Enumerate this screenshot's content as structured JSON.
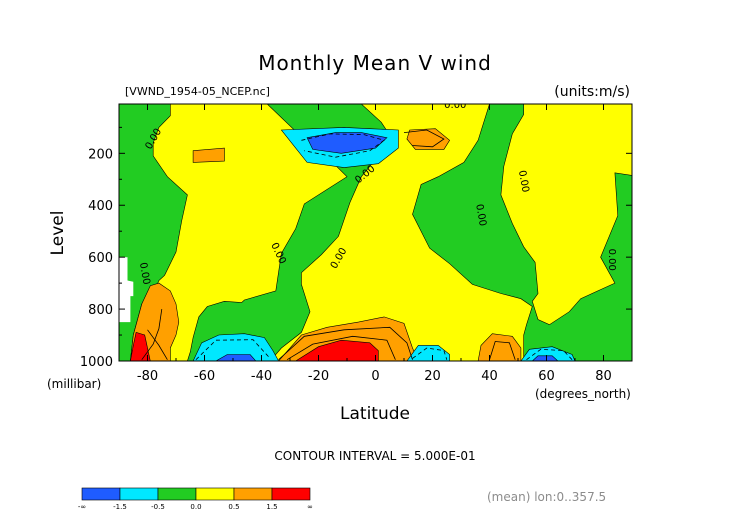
{
  "chart_data": {
    "type": "heatmap",
    "title": "Monthly Mean V wind",
    "subtitle_left": "[VWND_1954-05_NCEP.nc]",
    "subtitle_right": "(units:m/s)",
    "xlabel": "Latitude",
    "x_units": "(degrees_north)",
    "ylabel": "Level",
    "y_units": "(millibar)",
    "x_ticks": [
      -80,
      -60,
      -40,
      -20,
      0,
      20,
      40,
      60,
      80
    ],
    "y_ticks": [
      200,
      400,
      600,
      800,
      1000
    ],
    "xlim": [
      -90,
      90
    ],
    "ylim": [
      1000,
      10
    ],
    "contour_interval_text": "CONTOUR INTERVAL = 5.000E-01",
    "footnote": "(mean) lon:0..357.5",
    "contour_labels": [
      {
        "text": "0.00",
        "x": -77,
        "y": 150,
        "angle": -60
      },
      {
        "text": "0.00",
        "x": 28,
        "y": 25,
        "angle": 0
      },
      {
        "text": "0.00",
        "x": -3,
        "y": 290,
        "angle": -40
      },
      {
        "text": "0.00",
        "x": -35,
        "y": 590,
        "angle": 65
      },
      {
        "text": "0.00",
        "x": -12,
        "y": 610,
        "angle": -60
      },
      {
        "text": "0.00",
        "x": -82,
        "y": 665,
        "angle": 80
      },
      {
        "text": "0.00",
        "x": 36,
        "y": 440,
        "angle": 80
      },
      {
        "text": "0.00",
        "x": 51,
        "y": 310,
        "angle": 80
      },
      {
        "text": "0.00",
        "x": 82,
        "y": 610,
        "angle": 90
      }
    ],
    "legend": {
      "colors": [
        "#1f5cff",
        "#00e8ff",
        "#22cc22",
        "#ffff00",
        "#ffa000",
        "#ff0000"
      ],
      "labels": [
        "-∞",
        "-1.5",
        "-0.5",
        "0.0",
        "0.5",
        "1.5",
        "∞"
      ]
    },
    "regions": [
      {
        "level": "green",
        "color": "#22cc22",
        "pts": [
          [
            -90,
            10
          ],
          [
            90,
            10
          ],
          [
            90,
            1000
          ],
          [
            -90,
            1000
          ]
        ]
      },
      {
        "level": "yellow",
        "color": "#ffff00",
        "pts": [
          [
            -72,
            10
          ],
          [
            -66,
            10
          ],
          [
            -38,
            10
          ],
          [
            -28,
            115
          ],
          [
            -16,
            225
          ],
          [
            -10,
            290
          ],
          [
            -25,
            395
          ],
          [
            -28,
            490
          ],
          [
            -33,
            585
          ],
          [
            -35,
            730
          ],
          [
            -46,
            765
          ],
          [
            -47,
            775
          ],
          [
            -53,
            770
          ],
          [
            -59,
            790
          ],
          [
            -62,
            830
          ],
          [
            -64,
            910
          ],
          [
            -65,
            965
          ],
          [
            -66,
            1000
          ],
          [
            -86,
            1000
          ],
          [
            -85,
            900
          ],
          [
            -82,
            780
          ],
          [
            -77,
            715
          ],
          [
            -76,
            690
          ],
          [
            -74,
            670
          ],
          [
            -70,
            580
          ],
          [
            -68,
            460
          ],
          [
            -66,
            360
          ],
          [
            -73,
            290
          ],
          [
            -78,
            210
          ],
          [
            -78,
            160
          ],
          [
            -76,
            100
          ],
          [
            -72,
            55
          ]
        ]
      },
      {
        "level": "yellow",
        "color": "#ffff00",
        "pts": [
          [
            -5,
            10
          ],
          [
            40,
            10
          ],
          [
            36,
            150
          ],
          [
            31,
            235
          ],
          [
            22,
            290
          ],
          [
            16,
            320
          ],
          [
            13,
            435
          ],
          [
            19,
            565
          ],
          [
            26,
            625
          ],
          [
            34,
            705
          ],
          [
            44,
            740
          ],
          [
            51,
            760
          ],
          [
            55,
            790
          ],
          [
            53,
            860
          ],
          [
            52,
            900
          ],
          [
            52,
            1000
          ],
          [
            -37,
            1000
          ],
          [
            -33,
            950
          ],
          [
            -26,
            890
          ],
          [
            -23,
            810
          ],
          [
            -26,
            705
          ],
          [
            -26,
            660
          ],
          [
            -19,
            590
          ],
          [
            -13,
            520
          ],
          [
            -9,
            390
          ],
          [
            -5,
            290
          ],
          [
            1,
            210
          ],
          [
            5,
            130
          ],
          [
            2,
            80
          ]
        ]
      },
      {
        "level": "yellow",
        "color": "#ffff00",
        "pts": [
          [
            52,
            10
          ],
          [
            90,
            10
          ],
          [
            90,
            285
          ],
          [
            84,
            275
          ],
          [
            85,
            440
          ],
          [
            79,
            600
          ],
          [
            84,
            700
          ],
          [
            78,
            730
          ],
          [
            72,
            760
          ],
          [
            68,
            810
          ],
          [
            61,
            860
          ],
          [
            57,
            840
          ],
          [
            55,
            770
          ],
          [
            57,
            740
          ],
          [
            56,
            620
          ],
          [
            52,
            560
          ],
          [
            48,
            470
          ],
          [
            44,
            360
          ],
          [
            45,
            250
          ],
          [
            48,
            125
          ],
          [
            52,
            50
          ]
        ]
      },
      {
        "level": "orange",
        "color": "#ffa000",
        "pts": [
          [
            -86,
            1000
          ],
          [
            -85,
            900
          ],
          [
            -82,
            780
          ],
          [
            -79,
            710
          ],
          [
            -76,
            700
          ],
          [
            -72,
            730
          ],
          [
            -70,
            780
          ],
          [
            -69,
            850
          ],
          [
            -70,
            900
          ],
          [
            -72,
            950
          ],
          [
            -72,
            1000
          ]
        ]
      },
      {
        "level": "orange",
        "color": "#ffa000",
        "pts": [
          [
            -34,
            1000
          ],
          [
            -26,
            900
          ],
          [
            -17,
            870
          ],
          [
            -6,
            850
          ],
          [
            3,
            830
          ],
          [
            10,
            855
          ],
          [
            13,
            950
          ],
          [
            15,
            1000
          ]
        ]
      },
      {
        "level": "orange",
        "color": "#ffa000",
        "pts": [
          [
            -64,
            190
          ],
          [
            -53,
            180
          ],
          [
            -53,
            230
          ],
          [
            -64,
            235
          ]
        ]
      },
      {
        "level": "orange",
        "color": "#ffa000",
        "pts": [
          [
            12,
            110
          ],
          [
            21,
            105
          ],
          [
            26,
            150
          ],
          [
            24,
            185
          ],
          [
            14,
            185
          ],
          [
            11,
            145
          ]
        ]
      },
      {
        "level": "orange",
        "color": "#ffa000",
        "pts": [
          [
            36,
            1000
          ],
          [
            37,
            940
          ],
          [
            41,
            895
          ],
          [
            48,
            905
          ],
          [
            51,
            950
          ],
          [
            51,
            1000
          ]
        ]
      },
      {
        "level": "red",
        "color": "#ff0000",
        "pts": [
          [
            -86,
            1000
          ],
          [
            -85,
            940
          ],
          [
            -84,
            890
          ],
          [
            -81,
            900
          ],
          [
            -80,
            950
          ],
          [
            -79,
            1000
          ]
        ]
      },
      {
        "level": "red",
        "color": "#ff0000",
        "pts": [
          [
            -28,
            1000
          ],
          [
            -20,
            945
          ],
          [
            -12,
            920
          ],
          [
            -2,
            930
          ],
          [
            1,
            960
          ],
          [
            1,
            1000
          ]
        ]
      },
      {
        "level": "cyan",
        "color": "#00e8ff",
        "pts": [
          [
            -33,
            110
          ],
          [
            -11,
            100
          ],
          [
            -2,
            105
          ],
          [
            8,
            110
          ],
          [
            8,
            180
          ],
          [
            1,
            240
          ],
          [
            -11,
            255
          ],
          [
            -24,
            235
          ],
          [
            -28,
            180
          ]
        ]
      },
      {
        "level": "cyan",
        "color": "#00e8ff",
        "pts": [
          [
            -64,
            1000
          ],
          [
            -61,
            930
          ],
          [
            -55,
            900
          ],
          [
            -46,
            895
          ],
          [
            -39,
            910
          ],
          [
            -36,
            960
          ],
          [
            -34,
            1000
          ]
        ]
      },
      {
        "level": "cyan",
        "color": "#00e8ff",
        "pts": [
          [
            11,
            1000
          ],
          [
            15,
            940
          ],
          [
            22,
            940
          ],
          [
            26,
            975
          ],
          [
            26,
            1000
          ]
        ]
      },
      {
        "level": "cyan",
        "color": "#00e8ff",
        "pts": [
          [
            51,
            1000
          ],
          [
            54,
            955
          ],
          [
            62,
            945
          ],
          [
            69,
            975
          ],
          [
            70,
            1000
          ]
        ]
      },
      {
        "level": "blue",
        "color": "#1f5cff",
        "pts": [
          [
            -24,
            140
          ],
          [
            -14,
            120
          ],
          [
            -5,
            120
          ],
          [
            4,
            140
          ],
          [
            0,
            180
          ],
          [
            -12,
            200
          ],
          [
            -22,
            185
          ]
        ]
      },
      {
        "level": "blue",
        "color": "#1f5cff",
        "pts": [
          [
            -56,
            1000
          ],
          [
            -52,
            975
          ],
          [
            -44,
            975
          ],
          [
            -42,
            1000
          ]
        ]
      },
      {
        "level": "blue",
        "color": "#1f5cff",
        "pts": [
          [
            55,
            1000
          ],
          [
            57,
            980
          ],
          [
            62,
            980
          ],
          [
            64,
            1000
          ]
        ]
      },
      {
        "level": "missing",
        "color": "#ffffff",
        "pts": [
          [
            -90,
            600
          ],
          [
            -87,
            600
          ],
          [
            -87,
            690
          ],
          [
            -85,
            695
          ],
          [
            -85,
            750
          ],
          [
            -86,
            750
          ],
          [
            -86,
            850
          ],
          [
            -90,
            850
          ]
        ]
      }
    ],
    "dashed_lines": [
      [
        [
          -26,
          150
        ],
        [
          -16,
          125
        ],
        [
          -4,
          128
        ],
        [
          3,
          150
        ],
        [
          -2,
          190
        ],
        [
          -14,
          215
        ],
        [
          -25,
          190
        ]
      ],
      [
        [
          -63,
          995
        ],
        [
          -56,
          920
        ],
        [
          -43,
          918
        ],
        [
          -37,
          990
        ]
      ],
      [
        [
          13,
          990
        ],
        [
          18,
          950
        ],
        [
          24,
          960
        ],
        [
          25,
          995
        ]
      ],
      [
        [
          53,
          995
        ],
        [
          58,
          955
        ],
        [
          66,
          960
        ],
        [
          69,
          995
        ]
      ]
    ],
    "solid_lines": [
      [
        [
          -31,
          995
        ],
        [
          -22,
          935
        ],
        [
          -8,
          905
        ],
        [
          4,
          920
        ],
        [
          7,
          995
        ]
      ],
      [
        [
          -34,
          995
        ],
        [
          -25,
          905
        ],
        [
          -11,
          880
        ],
        [
          5,
          870
        ],
        [
          11,
          930
        ],
        [
          13,
          995
        ]
      ],
      [
        [
          -82,
          995
        ],
        [
          -78,
          935
        ],
        [
          -76,
          875
        ],
        [
          -75,
          800
        ]
      ],
      [
        [
          -73,
          995
        ],
        [
          -76,
          940
        ],
        [
          -80,
          880
        ]
      ],
      [
        [
          10,
          120
        ],
        [
          18,
          110
        ],
        [
          24,
          145
        ],
        [
          20,
          175
        ],
        [
          13,
          170
        ]
      ],
      [
        [
          40,
          995
        ],
        [
          42,
          925
        ],
        [
          47,
          930
        ],
        [
          49,
          995
        ]
      ]
    ]
  }
}
